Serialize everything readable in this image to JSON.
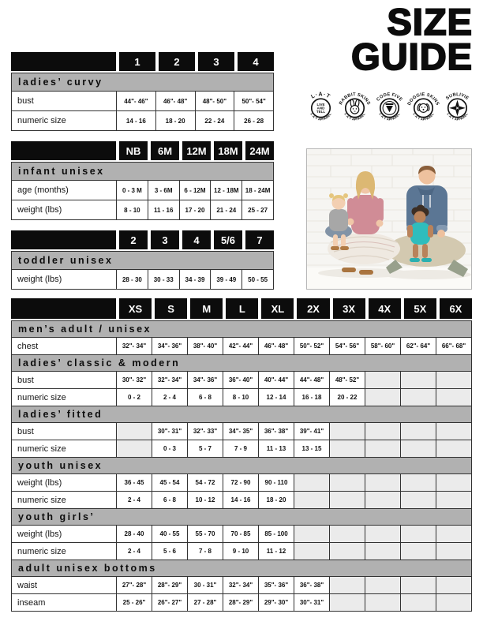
{
  "page": {
    "title_lines": [
      "SIZE",
      "GUIDE"
    ]
  },
  "colors": {
    "header_black": "#0c0c0c",
    "section_gray": "#b1b1b1",
    "empty_cell": "#ebebeb",
    "cell_border": "#323232",
    "page_bg": "#ffffff"
  },
  "brand_badges": [
    {
      "id": "lat",
      "top": "L·A·T",
      "center_lines": [
        "LIVE",
        "AND",
        "TELL"
      ],
      "bottom": "L·A·T APPAREL"
    },
    {
      "id": "rabbit-skins",
      "top": "RABBIT SKINS",
      "icon": "rabbit-icon",
      "bottom": "L·A·T APPAREL"
    },
    {
      "id": "code-five",
      "top": "CODE FIVE",
      "icon": "v-shield-icon",
      "bottom": "L·A·T APPAREL"
    },
    {
      "id": "doggie-skins",
      "top": "DOGGIE SKINS",
      "icon": "dog-icon",
      "bottom": "L·A·T APPAREL"
    },
    {
      "id": "sublivie",
      "top": "SUBLIVIE",
      "icon": "star-icon",
      "bottom": "L·A·T APPAREL"
    }
  ],
  "photo": {
    "description": "family of four seated against white brick wall",
    "palette": {
      "womens_tee": "#d08c96",
      "mens_hoodie": "#5b7694",
      "toddler_romper": "#2fbdbd",
      "baby_tee": "#a7a7a7",
      "wall": "#f6f5f2"
    }
  },
  "tables": [
    {
      "id": "ladies-curvy",
      "columns": [
        "1",
        "2",
        "3",
        "4"
      ],
      "sections": [
        {
          "title": "ladies’ curvy",
          "rows": [
            {
              "label": "bust",
              "cells": [
                "44\"- 46\"",
                "46\"- 48\"",
                "48\"- 50\"",
                "50\"- 54\""
              ]
            },
            {
              "label": "numeric size",
              "cells": [
                "14 - 16",
                "18 - 20",
                "22 - 24",
                "26 - 28"
              ]
            }
          ]
        }
      ]
    },
    {
      "id": "infant-unisex",
      "columns": [
        "NB",
        "6M",
        "12M",
        "18M",
        "24M"
      ],
      "sections": [
        {
          "title": "infant unisex",
          "rows": [
            {
              "label": "age (months)",
              "cells": [
                "0 - 3 M",
                "3 - 6M",
                "6 - 12M",
                "12 - 18M",
                "18 - 24M"
              ]
            },
            {
              "label": "weight (lbs)",
              "cells": [
                "8 - 10",
                "11 - 16",
                "17 - 20",
                "21 - 24",
                "25 - 27"
              ]
            }
          ]
        }
      ]
    },
    {
      "id": "toddler-unisex",
      "columns": [
        "2",
        "3",
        "4",
        "5/6",
        "7"
      ],
      "sections": [
        {
          "title": "toddler unisex",
          "rows": [
            {
              "label": "weight (lbs)",
              "cells": [
                "28 - 30",
                "30 - 33",
                "34 - 39",
                "39 - 49",
                "50 - 55"
              ]
            }
          ]
        }
      ]
    },
    {
      "id": "adult-sizes",
      "columns": [
        "XS",
        "S",
        "M",
        "L",
        "XL",
        "2X",
        "3X",
        "4X",
        "5X",
        "6X"
      ],
      "sections": [
        {
          "title": "men’s adult / unisex",
          "rows": [
            {
              "label": "chest",
              "cells": [
                "32\"- 34\"",
                "34\"- 36\"",
                "38\"- 40\"",
                "42\"- 44\"",
                "46\"- 48\"",
                "50\"- 52\"",
                "54\"- 56\"",
                "58\"- 60\"",
                "62\"- 64\"",
                "66\"- 68\""
              ]
            }
          ]
        },
        {
          "title": "ladies’ classic & modern",
          "rows": [
            {
              "label": "bust",
              "cells": [
                "30\"- 32\"",
                "32\"- 34\"",
                "34\"- 36\"",
                "36\"- 40\"",
                "40\"- 44\"",
                "44\"- 48\"",
                "48\"- 52\"",
                "",
                "",
                ""
              ]
            },
            {
              "label": "numeric size",
              "cells": [
                "0 - 2",
                "2 - 4",
                "6 - 8",
                "8 - 10",
                "12 - 14",
                "16 - 18",
                "20 - 22",
                "",
                "",
                ""
              ]
            }
          ]
        },
        {
          "title": "ladies’ fitted",
          "rows": [
            {
              "label": "bust",
              "cells": [
                "",
                "30\"- 31\"",
                "32\"- 33\"",
                "34\"- 35\"",
                "36\"- 38\"",
                "39\"- 41\"",
                "",
                "",
                "",
                ""
              ]
            },
            {
              "label": "numeric size",
              "cells": [
                "",
                "0 - 3",
                "5 - 7",
                "7 - 9",
                "11 - 13",
                "13 - 15",
                "",
                "",
                "",
                ""
              ]
            }
          ]
        },
        {
          "title": "youth unisex",
          "rows": [
            {
              "label": "weight (lbs)",
              "cells": [
                "36 - 45",
                "45 - 54",
                "54 - 72",
                "72 - 90",
                "90 - 110",
                "",
                "",
                "",
                "",
                ""
              ]
            },
            {
              "label": "numeric size",
              "cells": [
                "2 - 4",
                "6 - 8",
                "10 - 12",
                "14 - 16",
                "18 - 20",
                "",
                "",
                "",
                "",
                ""
              ]
            }
          ]
        },
        {
          "title": "youth girls’",
          "rows": [
            {
              "label": "weight (lbs)",
              "cells": [
                "28 - 40",
                "40 - 55",
                "55 - 70",
                "70 - 85",
                "85 - 100",
                "",
                "",
                "",
                "",
                ""
              ]
            },
            {
              "label": "numeric size",
              "cells": [
                "2 - 4",
                "5 - 6",
                "7 - 8",
                "9 - 10",
                "11 - 12",
                "",
                "",
                "",
                "",
                ""
              ]
            }
          ]
        },
        {
          "title": "adult unisex bottoms",
          "rows": [
            {
              "label": "waist",
              "cells": [
                "27\"- 28\"",
                "28\"- 29\"",
                "30 - 31\"",
                "32\"- 34\"",
                "35\"- 36\"",
                "36\"- 38\"",
                "",
                "",
                "",
                ""
              ]
            },
            {
              "label": "inseam",
              "cells": [
                "25 - 26\"",
                "26\"- 27\"",
                "27 - 28\"",
                "28\"- 29\"",
                "29\"- 30\"",
                "30\"- 31\"",
                "",
                "",
                "",
                ""
              ]
            }
          ]
        }
      ]
    }
  ]
}
